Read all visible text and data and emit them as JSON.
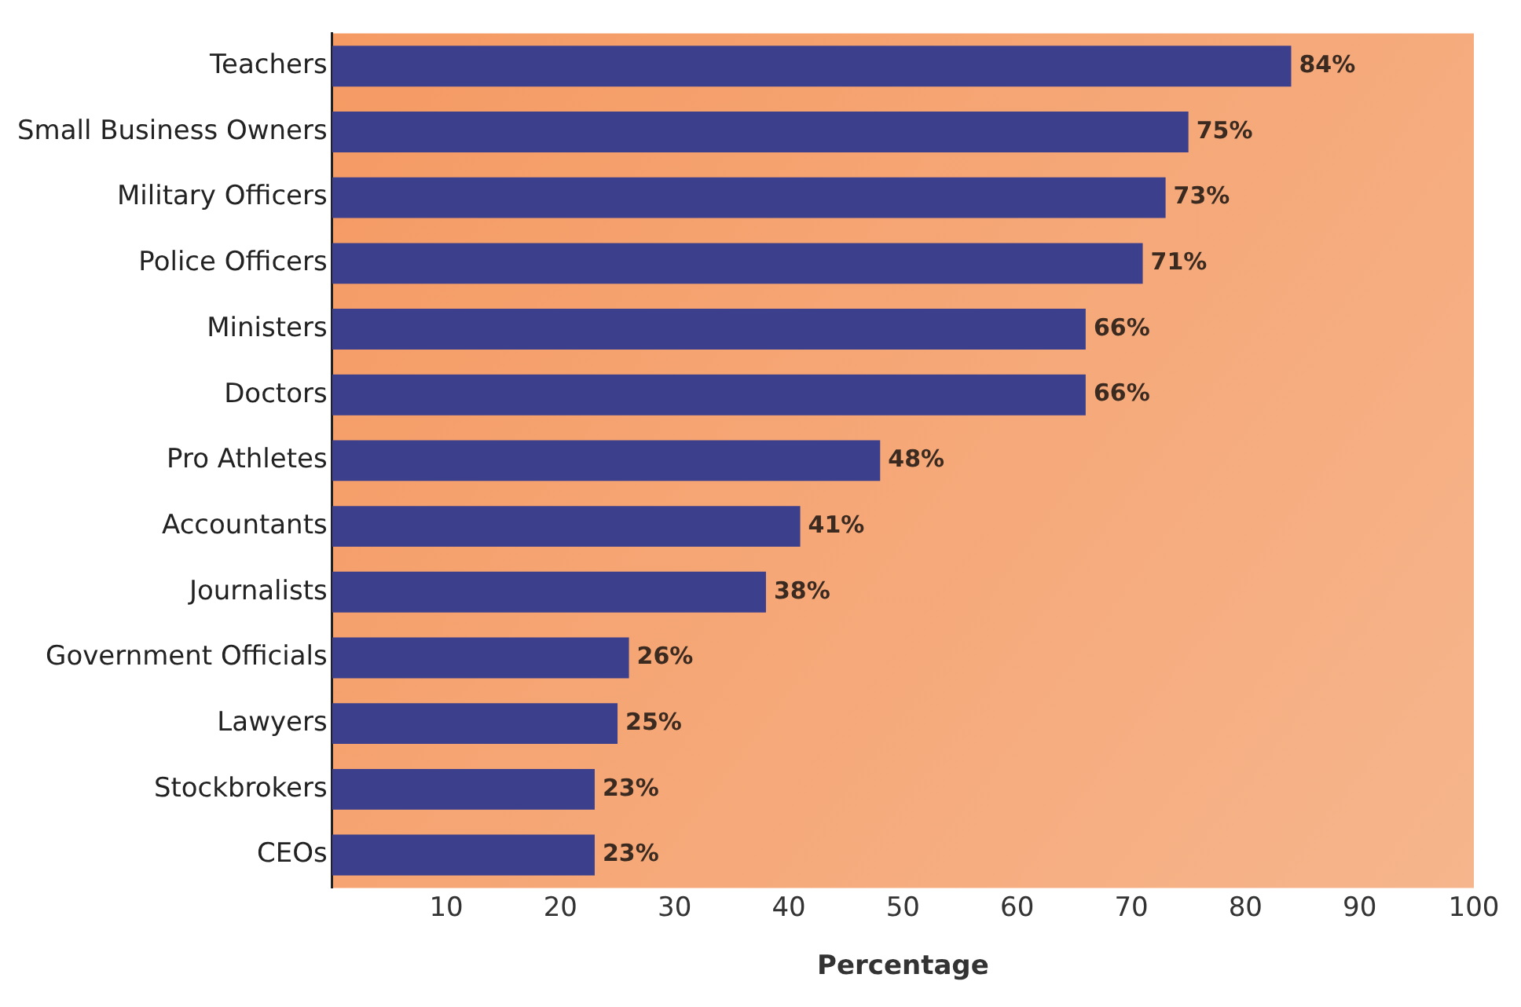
{
  "chart_data": {
    "type": "bar",
    "orientation": "horizontal",
    "xlabel": "Percentage",
    "categories": [
      "Teachers",
      "Small Business Owners",
      "Military Officers",
      "Police Officers",
      "Ministers",
      "Doctors",
      "Pro Athletes",
      "Accountants",
      "Journalists",
      "Government Officials",
      "Lawyers",
      "Stockbrokers",
      "CEOs"
    ],
    "values": [
      84,
      75,
      73,
      71,
      66,
      66,
      48,
      41,
      38,
      26,
      25,
      23,
      23
    ],
    "value_labels": [
      "84%",
      "75%",
      "73%",
      "71%",
      "66%",
      "66%",
      "48%",
      "41%",
      "38%",
      "26%",
      "25%",
      "23%",
      "23%"
    ],
    "color": "#3b3f8c",
    "xlim": [
      0,
      100
    ],
    "xticks": [
      10,
      20,
      30,
      40,
      50,
      60,
      70,
      80,
      90,
      100
    ],
    "grid": false,
    "legend": false
  }
}
